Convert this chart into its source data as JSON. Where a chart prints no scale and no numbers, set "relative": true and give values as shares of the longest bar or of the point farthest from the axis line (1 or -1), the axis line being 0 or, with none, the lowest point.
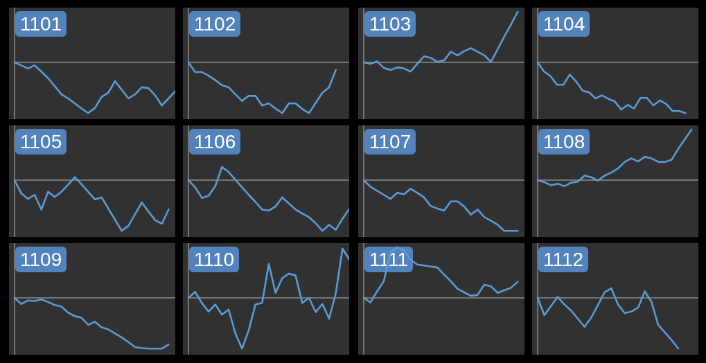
{
  "chart_data": [
    {
      "type": "line",
      "title": "1101",
      "relative": true,
      "color": "#5b9bd5",
      "categories": [
        null,
        null,
        null,
        null,
        null,
        null,
        null,
        null,
        null,
        null,
        null,
        null,
        null,
        null,
        null,
        null,
        null,
        null,
        null,
        null,
        null,
        null,
        null,
        null,
        null
      ],
      "values": [
        0,
        -0.06,
        -0.12,
        -0.06,
        -0.18,
        -0.31,
        -0.47,
        -0.63,
        -0.71,
        -0.81,
        -0.91,
        -1,
        -0.9,
        -0.68,
        -0.6,
        -0.37,
        -0.54,
        -0.71,
        -0.63,
        -0.49,
        -0.51,
        -0.65,
        -0.85,
        -0.71,
        -0.57
      ]
    },
    {
      "type": "line",
      "title": "1102",
      "relative": true,
      "color": "#5b9bd5",
      "categories": [
        null,
        null,
        null,
        null,
        null,
        null,
        null,
        null,
        null,
        null,
        null,
        null,
        null,
        null,
        null,
        null,
        null,
        null,
        null,
        null,
        null,
        null,
        null,
        null,
        null
      ],
      "values": [
        0,
        -0.19,
        -0.19,
        -0.26,
        -0.35,
        -0.45,
        -0.49,
        -0.63,
        -0.76,
        -0.66,
        -0.66,
        -0.85,
        -0.81,
        -0.91,
        -1,
        -0.81,
        -0.81,
        -0.92,
        -1,
        -0.8,
        -0.6,
        -0.49,
        -0.15,
        null,
        null
      ]
    },
    {
      "type": "line",
      "title": "1103",
      "relative": true,
      "color": "#5b9bd5",
      "categories": [
        null,
        null,
        null,
        null,
        null,
        null,
        null,
        null,
        null,
        null,
        null,
        null,
        null,
        null,
        null,
        null,
        null,
        null,
        null,
        null,
        null,
        null,
        null,
        null,
        null
      ],
      "values": [
        0,
        -0.03,
        0.02,
        -0.11,
        -0.15,
        -0.1,
        -0.12,
        -0.18,
        -0.03,
        0.12,
        0.09,
        0.01,
        0.04,
        0.21,
        0.14,
        0.22,
        0.28,
        0.21,
        0.14,
        0.01,
        0.26,
        0.51,
        0.75,
        1,
        null
      ]
    },
    {
      "type": "line",
      "title": "1104",
      "relative": true,
      "color": "#5b9bd5",
      "categories": [
        null,
        null,
        null,
        null,
        null,
        null,
        null,
        null,
        null,
        null,
        null,
        null,
        null,
        null,
        null,
        null,
        null,
        null,
        null,
        null,
        null,
        null,
        null,
        null,
        null,
        null
      ],
      "values": [
        0,
        -0.18,
        -0.27,
        -0.44,
        -0.44,
        -0.24,
        -0.38,
        -0.56,
        -0.59,
        -0.71,
        -0.65,
        -0.72,
        -0.77,
        -0.93,
        -0.84,
        -0.91,
        -0.7,
        -0.7,
        -0.85,
        -0.75,
        -0.82,
        -0.96,
        -0.96,
        -1,
        null,
        null
      ]
    },
    {
      "type": "line",
      "title": "1105",
      "relative": true,
      "color": "#5b9bd5",
      "categories": [
        null,
        null,
        null,
        null,
        null,
        null,
        null,
        null,
        null,
        null,
        null,
        null,
        null,
        null,
        null,
        null,
        null,
        null,
        null,
        null,
        null,
        null,
        null,
        null,
        null
      ],
      "values": [
        0,
        -0.26,
        -0.37,
        -0.29,
        -0.58,
        -0.23,
        -0.33,
        -0.23,
        -0.09,
        0.06,
        -0.08,
        -0.23,
        -0.38,
        -0.34,
        -0.56,
        -0.78,
        -1,
        -0.9,
        -0.67,
        -0.44,
        -0.62,
        -0.79,
        -0.86,
        -0.58,
        null
      ]
    },
    {
      "type": "line",
      "title": "1106",
      "relative": true,
      "color": "#5b9bd5",
      "categories": [
        null,
        null,
        null,
        null,
        null,
        null,
        null,
        null,
        null,
        null,
        null,
        null,
        null,
        null,
        null,
        null,
        null,
        null,
        null,
        null,
        null,
        null,
        null,
        null,
        null
      ],
      "values": [
        0,
        -0.14,
        -0.35,
        -0.31,
        -0.12,
        0.26,
        0.16,
        0.01,
        -0.14,
        -0.29,
        -0.43,
        -0.58,
        -0.6,
        -0.52,
        -0.34,
        -0.46,
        -0.58,
        -0.66,
        -0.73,
        -0.85,
        -1,
        -0.88,
        -0.98,
        -0.76,
        -0.57
      ]
    },
    {
      "type": "line",
      "title": "1107",
      "relative": true,
      "color": "#5b9bd5",
      "categories": [
        null,
        null,
        null,
        null,
        null,
        null,
        null,
        null,
        null,
        null,
        null,
        null,
        null,
        null,
        null,
        null,
        null,
        null,
        null,
        null,
        null,
        null,
        null,
        null,
        null
      ],
      "values": [
        0,
        -0.13,
        -0.21,
        -0.29,
        -0.37,
        -0.25,
        -0.28,
        -0.17,
        -0.25,
        -0.34,
        -0.51,
        -0.56,
        -0.6,
        -0.42,
        -0.42,
        -0.52,
        -0.68,
        -0.58,
        -0.73,
        -0.8,
        -0.88,
        -1,
        -1,
        -1,
        null
      ]
    },
    {
      "type": "line",
      "title": "1108",
      "relative": true,
      "color": "#5b9bd5",
      "categories": [
        null,
        null,
        null,
        null,
        null,
        null,
        null,
        null,
        null,
        null,
        null,
        null,
        null,
        null,
        null,
        null,
        null,
        null,
        null,
        null,
        null,
        null,
        null,
        null,
        null
      ],
      "values": [
        0,
        -0.04,
        -0.1,
        -0.07,
        -0.12,
        -0.05,
        -0.03,
        0.09,
        0.06,
        -0.01,
        0.09,
        0.15,
        0.23,
        0.36,
        0.43,
        0.37,
        0.46,
        0.43,
        0.36,
        0.36,
        0.4,
        0.62,
        0.81,
        1,
        null
      ]
    },
    {
      "type": "line",
      "title": "1109",
      "relative": true,
      "color": "#5b9bd5",
      "categories": [
        null,
        null,
        null,
        null,
        null,
        null,
        null,
        null,
        null,
        null,
        null,
        null,
        null,
        null,
        null,
        null,
        null,
        null,
        null,
        null,
        null,
        null,
        null,
        null,
        null
      ],
      "values": [
        0,
        -0.12,
        -0.05,
        -0.06,
        -0.03,
        -0.08,
        -0.14,
        -0.17,
        -0.29,
        -0.36,
        -0.39,
        -0.53,
        -0.47,
        -0.58,
        -0.62,
        -0.7,
        -0.78,
        -0.87,
        -0.97,
        -0.99,
        -1,
        -1,
        -1,
        -0.92,
        null
      ]
    },
    {
      "type": "line",
      "title": "1110",
      "relative": true,
      "color": "#5b9bd5",
      "categories": [
        null,
        null,
        null,
        null,
        null,
        null,
        null,
        null,
        null,
        null,
        null,
        null,
        null,
        null,
        null,
        null,
        null,
        null,
        null,
        null,
        null,
        null,
        null,
        null,
        null
      ],
      "values": [
        0,
        0.12,
        -0.1,
        -0.27,
        -0.13,
        -0.33,
        -0.23,
        -0.7,
        -1,
        -0.64,
        -0.13,
        -0.1,
        0.67,
        0.1,
        0.39,
        0.48,
        0.44,
        -0.1,
        0,
        -0.28,
        -0.12,
        -0.41,
        0.09,
        0.97,
        0.76
      ]
    },
    {
      "type": "line",
      "title": "1111",
      "relative": true,
      "color": "#5b9bd5",
      "categories": [
        null,
        null,
        null,
        null,
        null,
        null,
        null,
        null,
        null,
        null,
        null,
        null,
        null,
        null,
        null,
        null,
        null,
        null,
        null,
        null,
        null,
        null,
        null,
        null,
        null
      ],
      "values": [
        0,
        -0.09,
        0.13,
        0.33,
        0.9,
        1,
        0.93,
        0.75,
        0.66,
        0.64,
        0.62,
        0.6,
        0.46,
        0.33,
        0.18,
        0.11,
        0.04,
        0.06,
        0.26,
        0.23,
        0.1,
        0.15,
        0.2,
        0.32,
        null
      ]
    },
    {
      "type": "line",
      "title": "1112",
      "relative": true,
      "color": "#5b9bd5",
      "categories": [
        null,
        null,
        null,
        null,
        null,
        null,
        null,
        null,
        null,
        null,
        null,
        null,
        null,
        null,
        null,
        null,
        null,
        null,
        null,
        null,
        null,
        null,
        null,
        null,
        null
      ],
      "values": [
        0,
        -0.34,
        -0.16,
        0.02,
        -0.13,
        -0.25,
        -0.41,
        -0.57,
        -0.39,
        -0.14,
        0.11,
        0.19,
        -0.13,
        -0.3,
        -0.27,
        -0.19,
        0.13,
        -0.08,
        -0.53,
        -0.68,
        -0.83,
        -1,
        null,
        null,
        null
      ]
    }
  ]
}
